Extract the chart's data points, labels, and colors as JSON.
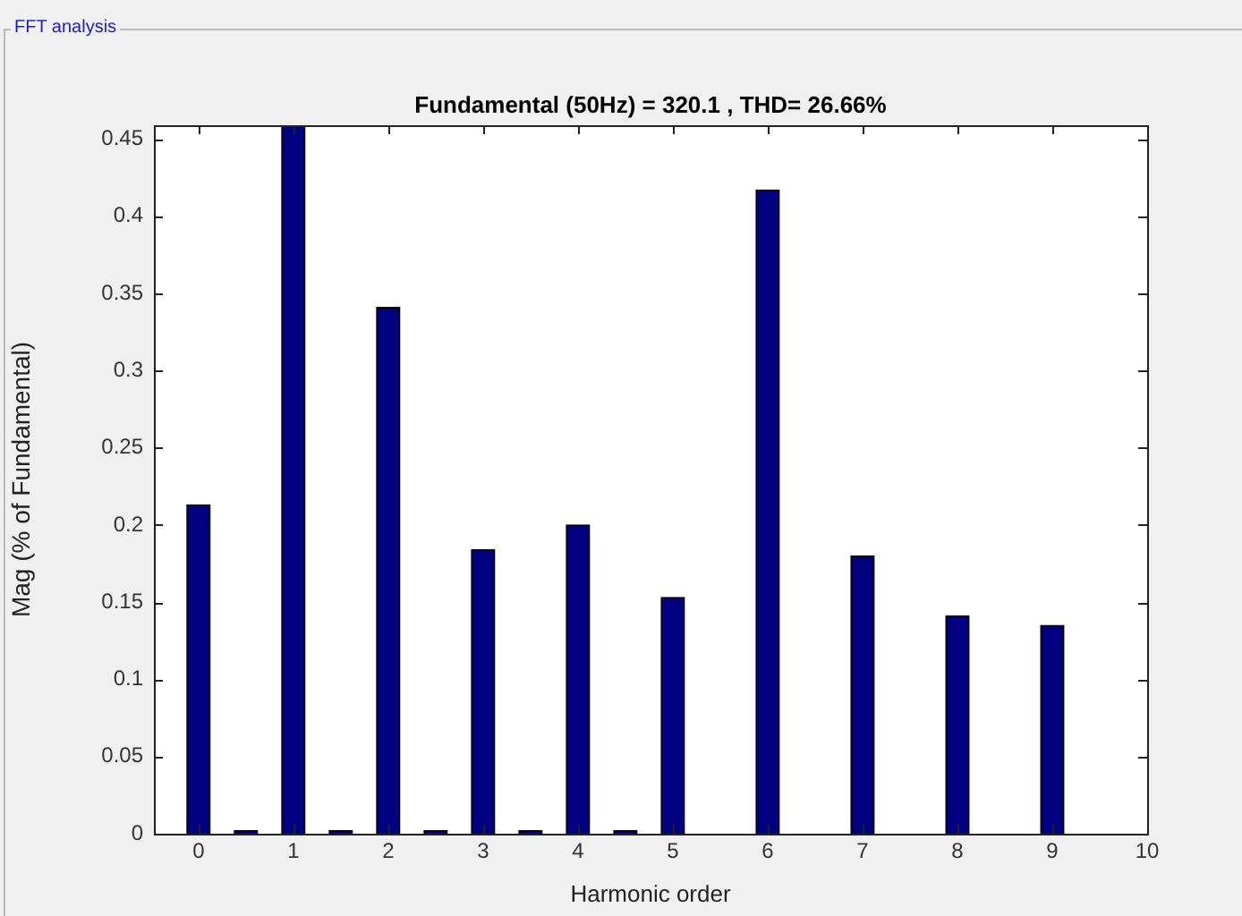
{
  "chart_data": {
    "type": "bar",
    "title": "Fundamental (50Hz) = 320.1 , THD= 26.66%",
    "xlabel": "Harmonic order",
    "ylabel": "Mag (% of Fundamental)",
    "annotations": [
      "FFT analysis"
    ],
    "x": [
      0,
      0.5,
      1,
      1.5,
      2,
      2.5,
      3,
      3.5,
      4,
      4.5,
      5,
      6,
      7,
      8,
      9
    ],
    "values": [
      0.213,
      0.002,
      0.459,
      0.002,
      0.341,
      0.002,
      0.184,
      0.002,
      0.2,
      0.002,
      0.153,
      0.417,
      0.18,
      0.141,
      0.135
    ],
    "color": "#000080",
    "xlim": [
      -0.47,
      10
    ],
    "xticks": [
      0,
      1,
      2,
      3,
      4,
      5,
      6,
      7,
      8,
      9,
      10
    ],
    "ylim": [
      0,
      0.459
    ],
    "yticks": [
      0,
      0.05,
      0.1,
      0.15,
      0.2,
      0.25,
      0.3,
      0.35,
      0.4,
      0.45
    ],
    "grid": false,
    "legend": false
  }
}
